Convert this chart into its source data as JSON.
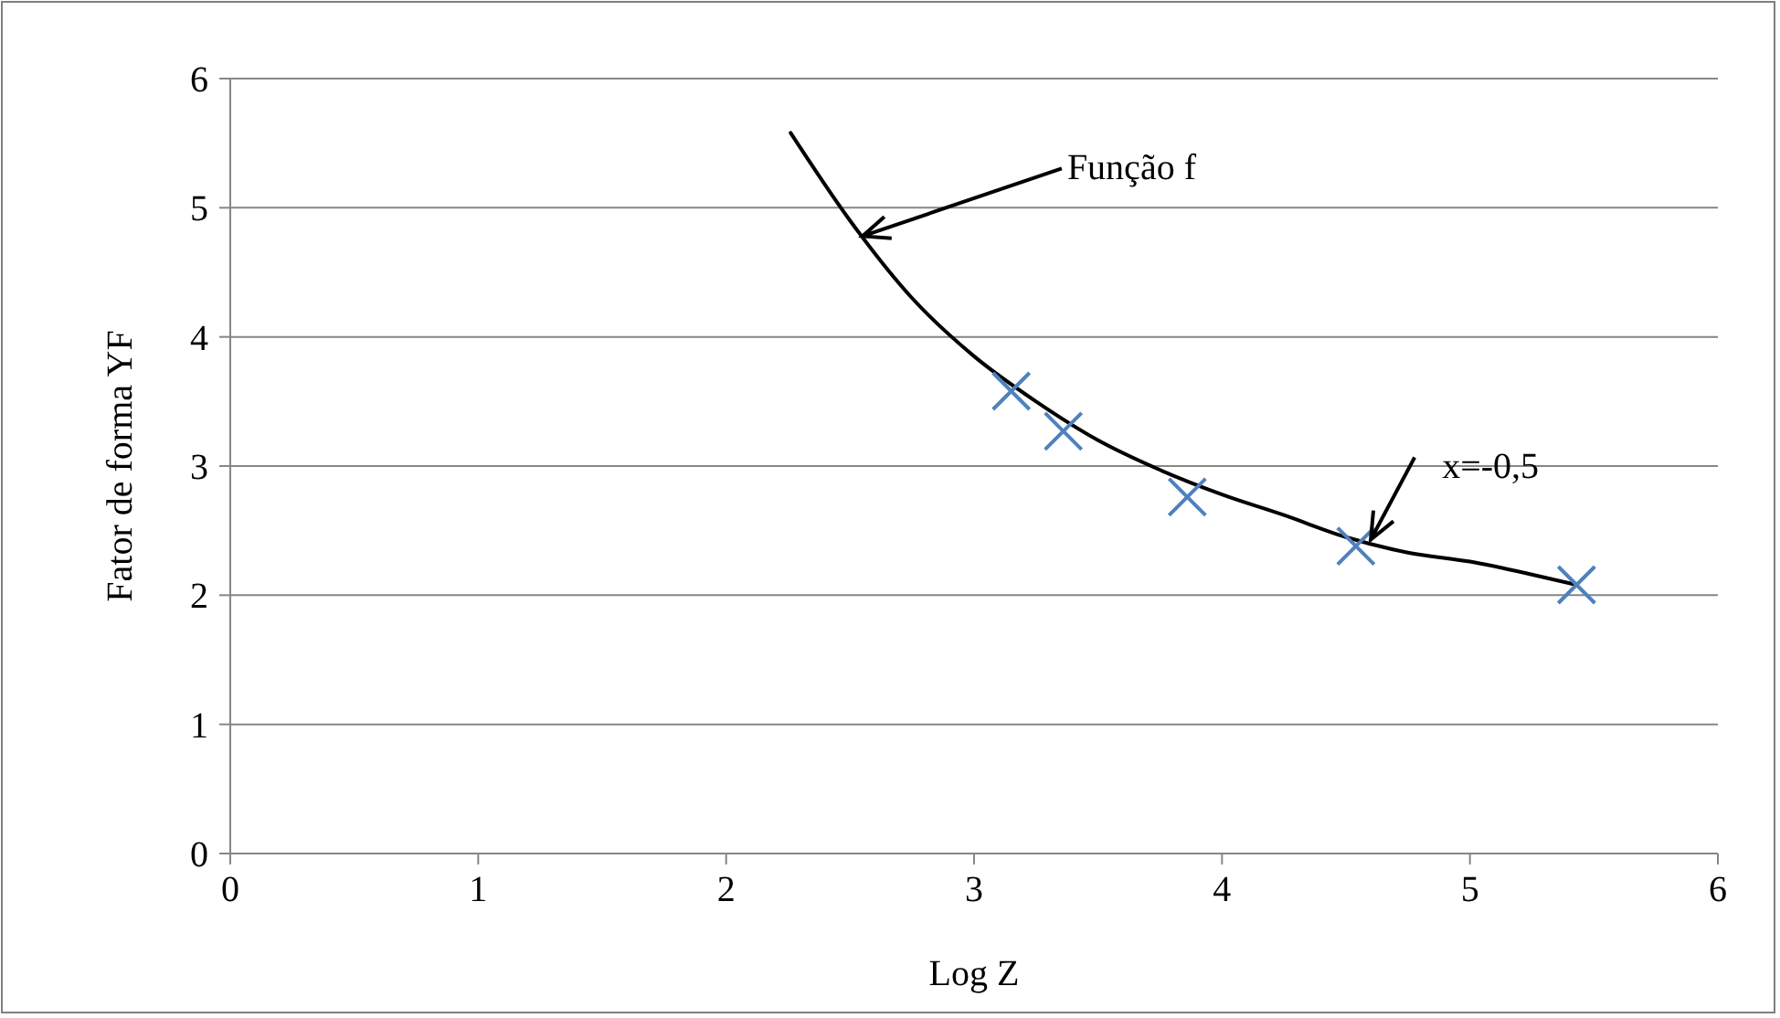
{
  "chart_data": {
    "type": "scatter",
    "xlabel": "Log Z",
    "ylabel": "Fator de forma YF",
    "xlim": [
      0,
      6
    ],
    "ylim": [
      0,
      6
    ],
    "xticks": [
      0,
      1,
      2,
      3,
      4,
      5,
      6
    ],
    "yticks": [
      0,
      1,
      2,
      3,
      4,
      5,
      6
    ],
    "grid": "y",
    "marker": "cross",
    "series": [
      {
        "type": "line",
        "color": "#000000",
        "marker": "none",
        "line_style": "solid",
        "x": [
          2.26,
          2.5,
          2.75,
          3.0,
          3.25,
          3.5,
          3.75,
          4.0,
          4.25,
          4.5,
          4.75,
          5.0,
          5.25,
          5.43
        ],
        "values": [
          5.58,
          4.9,
          4.3,
          3.85,
          3.5,
          3.2,
          2.97,
          2.78,
          2.62,
          2.45,
          2.33,
          2.26,
          2.16,
          2.08
        ]
      },
      {
        "color": "#4f81bd",
        "x": [
          3.15,
          3.36,
          3.86,
          4.54,
          5.43
        ],
        "values": [
          3.58,
          3.27,
          2.76,
          2.38,
          2.08
        ]
      }
    ],
    "annotations": [
      {
        "text": "Função f",
        "x": 2.55,
        "y": 4.78
      },
      {
        "text": "x=-0,5",
        "x": 4.6,
        "y": 2.43
      }
    ]
  }
}
